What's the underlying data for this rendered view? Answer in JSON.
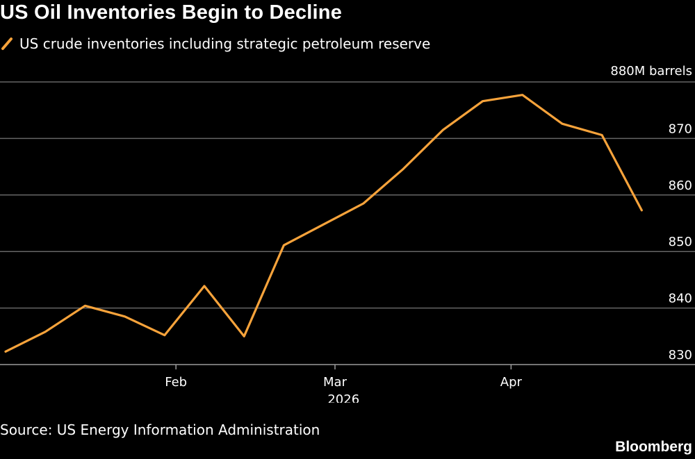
{
  "title": "US Oil Inventories Begin to Decline",
  "source": "Source: US Energy Information Administration",
  "brand": "Bloomberg",
  "colors": {
    "background": "#000000",
    "series": "#f7a33b",
    "gridline": "#666666",
    "axis": "#9a9a9a",
    "text": "#ffffff"
  },
  "chart_data": {
    "type": "line",
    "ylabel": "",
    "y_unit_label": "880M barrels",
    "ylim": [
      830,
      880
    ],
    "yticks": [
      830,
      840,
      850,
      860,
      870
    ],
    "xlim": [
      "2026-01-02",
      "2026-04-28"
    ],
    "xticks": [
      {
        "label": "Feb",
        "date": "2026-02-01"
      },
      {
        "label": "Mar",
        "date": "2026-03-01"
      },
      {
        "label": "Apr",
        "date": "2026-04-01"
      }
    ],
    "year_label": "2026",
    "grid": true,
    "legend_position": "top-left",
    "series": [
      {
        "name": "US crude inventories including strategic petroleum reserve",
        "x": [
          "2026-01-02",
          "2026-01-09",
          "2026-01-16",
          "2026-01-23",
          "2026-01-30",
          "2026-02-06",
          "2026-02-13",
          "2026-02-20",
          "2026-02-27",
          "2026-03-06",
          "2026-03-13",
          "2026-03-20",
          "2026-03-27",
          "2026-04-03",
          "2026-04-10",
          "2026-04-17",
          "2026-04-24"
        ],
        "y": [
          832.3,
          835.8,
          840.4,
          838.5,
          835.2,
          843.9,
          835.0,
          851.1,
          854.8,
          858.5,
          864.6,
          871.5,
          876.6,
          877.7,
          872.6,
          870.6,
          857.3
        ]
      }
    ]
  }
}
